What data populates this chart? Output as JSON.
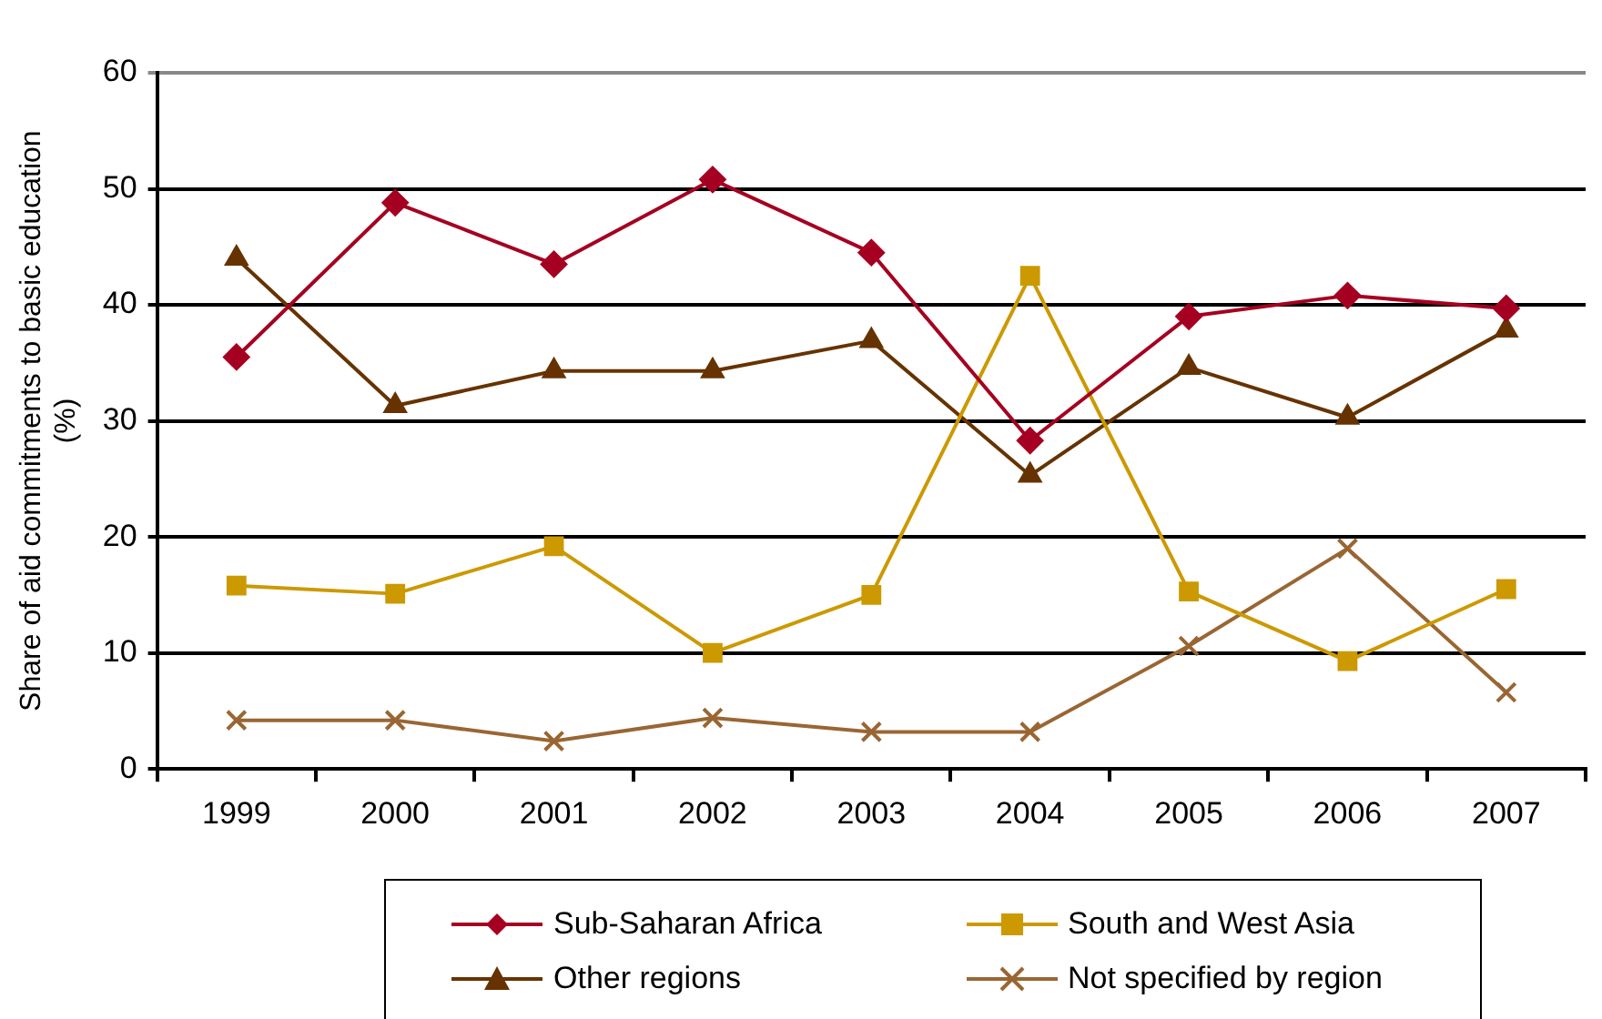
{
  "chart_data": {
    "type": "line",
    "ylabel": "Share of aid commitments to basic education (%)",
    "categories": [
      "1999",
      "2000",
      "2001",
      "2002",
      "2003",
      "2004",
      "2005",
      "2006",
      "2007"
    ],
    "series": [
      {
        "name": "Sub-Saharan Africa",
        "color": "#a50021",
        "marker": "diamond",
        "values": [
          35.5,
          48.8,
          43.5,
          50.8,
          44.5,
          28.3,
          39,
          40.8,
          39.7
        ]
      },
      {
        "name": "South and West Asia",
        "color": "#cc9900",
        "marker": "square",
        "values": [
          15.8,
          15.1,
          19.2,
          10,
          15,
          42.5,
          15.3,
          9.3,
          15.5
        ]
      },
      {
        "name": "Other regions",
        "color": "#663300",
        "marker": "triangle",
        "values": [
          44,
          31.3,
          34.3,
          34.3,
          36.9,
          25.3,
          34.6,
          30.3,
          37.8
        ]
      },
      {
        "name": "Not specified by region",
        "color": "#996633",
        "marker": "cross",
        "values": [
          4.2,
          4.2,
          2.4,
          4.4,
          3.2,
          3.2,
          10.6,
          19,
          6.6
        ]
      }
    ],
    "ylim": [
      0,
      60
    ],
    "yticks": [
      0,
      10,
      20,
      30,
      40,
      50,
      60
    ],
    "grid": "y",
    "legend": "bottom",
    "line_style": "solid"
  }
}
